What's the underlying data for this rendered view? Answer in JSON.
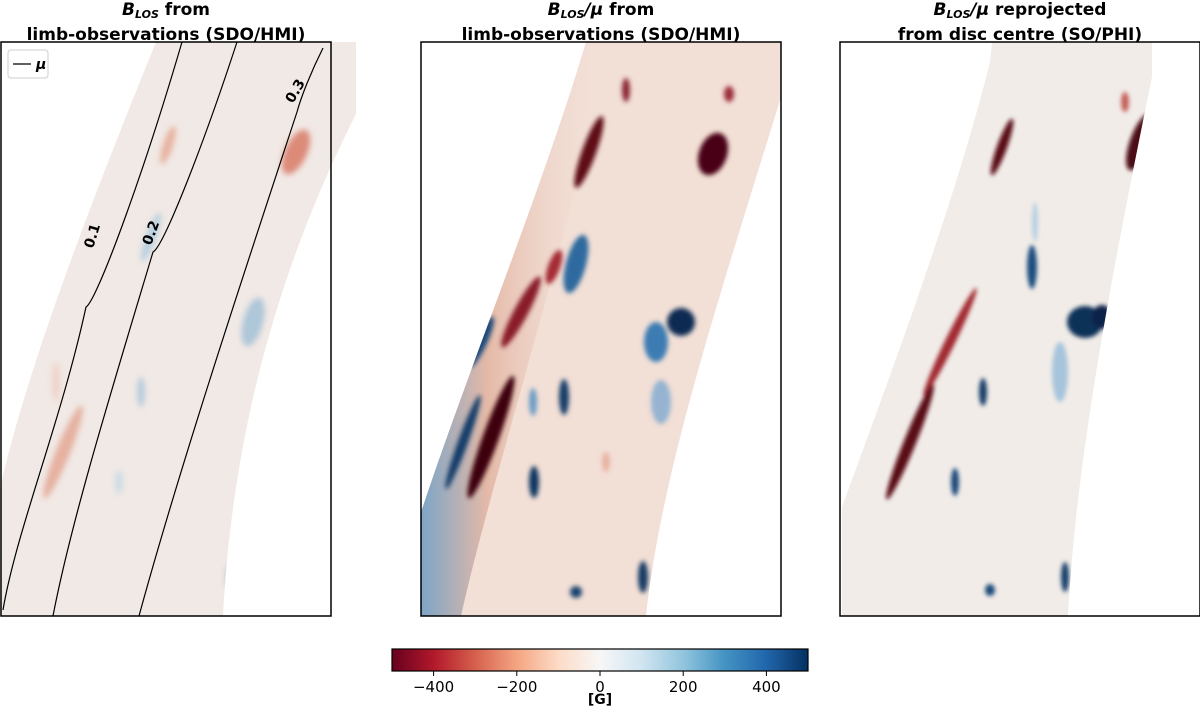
{
  "panels": [
    {
      "title_line1": {
        "sym": "B",
        "sub": "LOS",
        "rest": " from"
      },
      "title_line2": "limb-observations (SDO/HMI)"
    },
    {
      "title_line1": {
        "sym": "B",
        "sub": "LOS",
        "mu": "/μ",
        "rest": " from"
      },
      "title_line2": "limb-observations (SDO/HMI)"
    },
    {
      "title_line1": {
        "sym": "B",
        "sub": "LOS",
        "mu": "/μ",
        "rest": " reprojected"
      },
      "title_line2": "from disc centre (SO/PHI)"
    }
  ],
  "legend": {
    "label": "μ"
  },
  "contours": [
    {
      "label": "0.1",
      "value": 0.1
    },
    {
      "label": "0.2",
      "value": 0.2
    },
    {
      "label": "0.3",
      "value": 0.3
    }
  ],
  "colorbar": {
    "min": -500,
    "max": 500,
    "ticks": [
      {
        "value": -400,
        "label": "−400"
      },
      {
        "value": -200,
        "label": "−200"
      },
      {
        "value": 0,
        "label": "0"
      },
      {
        "value": 200,
        "label": "200"
      },
      {
        "value": 400,
        "label": "400"
      }
    ],
    "label": "[G]",
    "colormap": [
      "#67001f",
      "#b2182b",
      "#d6604d",
      "#f4a582",
      "#fddbc7",
      "#f7f7f7",
      "#d1e5f0",
      "#92c5de",
      "#4393c3",
      "#2166ac",
      "#053061"
    ]
  }
}
